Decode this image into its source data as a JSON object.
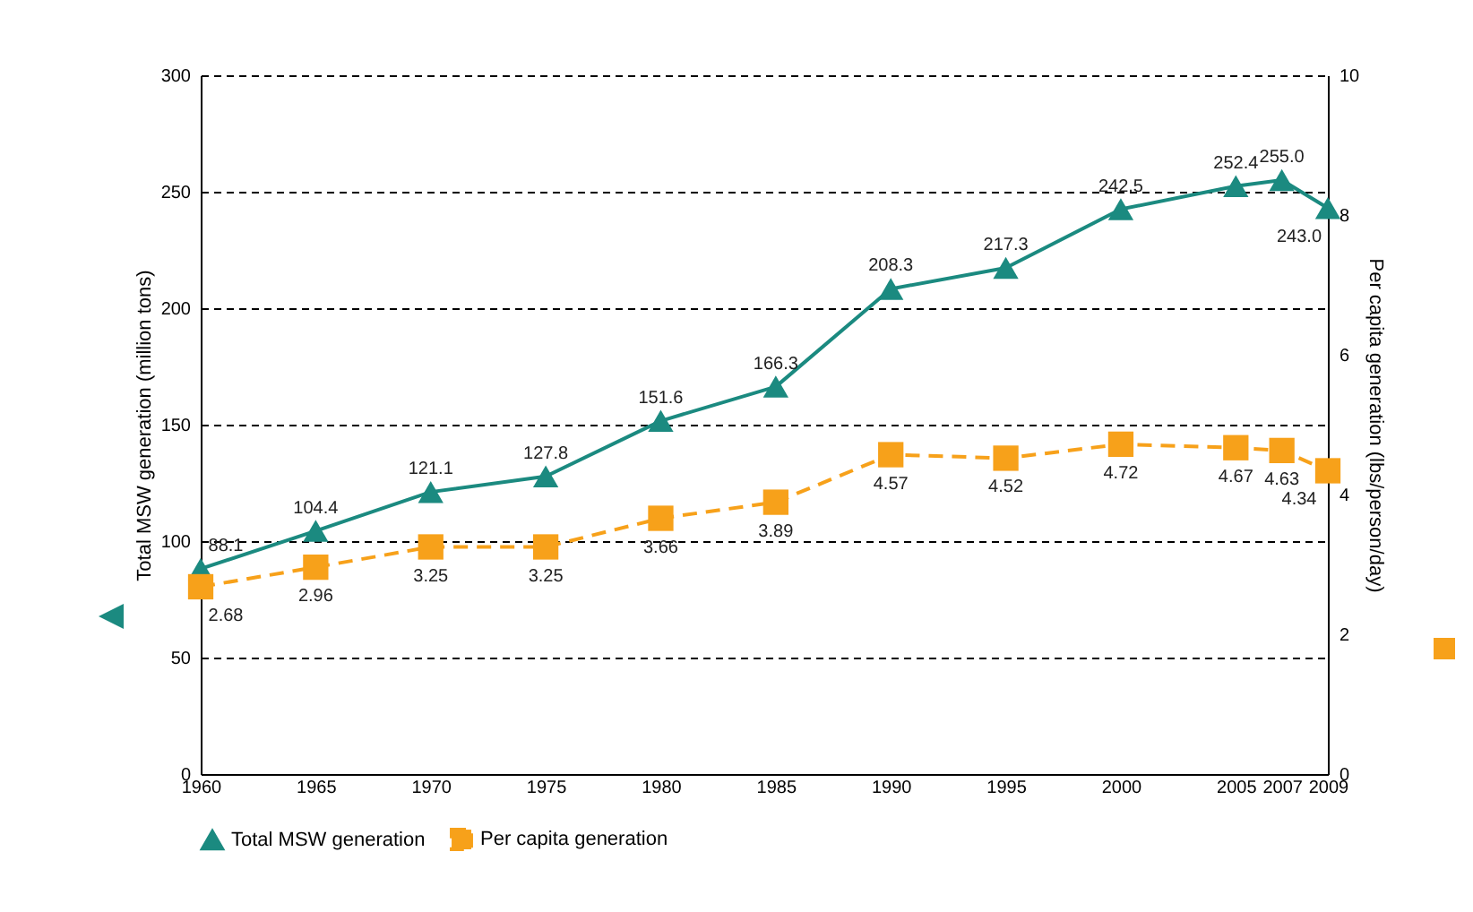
{
  "chart_data": {
    "type": "line",
    "ylabel": "Total MSW generation (million tons)",
    "y2label": "Per capita generation (lbs/person/day)",
    "x": [
      1960,
      1965,
      1970,
      1975,
      1980,
      1985,
      1990,
      1995,
      2000,
      2005,
      2007,
      2009
    ],
    "xlim": [
      1960,
      2009
    ],
    "xticks": [
      1960,
      1965,
      1970,
      1975,
      1980,
      1985,
      1990,
      1995,
      2000,
      2005,
      2007,
      2009
    ],
    "ylim": [
      0,
      300
    ],
    "yticks": [
      0,
      50,
      100,
      150,
      200,
      250,
      300
    ],
    "y2lim": [
      0,
      10
    ],
    "y2ticks": [
      0,
      2,
      4,
      6,
      8,
      10
    ],
    "grid": "y",
    "legend": "bottom",
    "series": [
      {
        "name": "Total MSW generation",
        "color": "#1b8a80",
        "marker": "triangle",
        "line_style": "solid",
        "values": [
          88.1,
          104.4,
          121.1,
          127.8,
          151.6,
          166.3,
          208.3,
          217.3,
          242.5,
          252.4,
          255.0,
          243.0
        ],
        "value_labels": [
          "88.1",
          "104.4",
          "121.1",
          "127.8",
          "151.6",
          "166.3",
          "208.3",
          "217.3",
          "242.5",
          "252.4",
          "255.0",
          "243.0"
        ]
      },
      {
        "name": "Per capita generation",
        "color": "#f7a11a",
        "marker": "square",
        "line_style": "dashed",
        "axis": "y2",
        "values": [
          2.68,
          2.96,
          3.25,
          3.25,
          3.66,
          3.89,
          4.57,
          4.52,
          4.72,
          4.67,
          4.63,
          4.34
        ],
        "value_labels": [
          "2.68",
          "2.96",
          "3.25",
          "3.25",
          "3.66",
          "3.89",
          "4.57",
          "4.52",
          "4.72",
          "4.67",
          "4.63",
          "4.34"
        ]
      }
    ]
  }
}
